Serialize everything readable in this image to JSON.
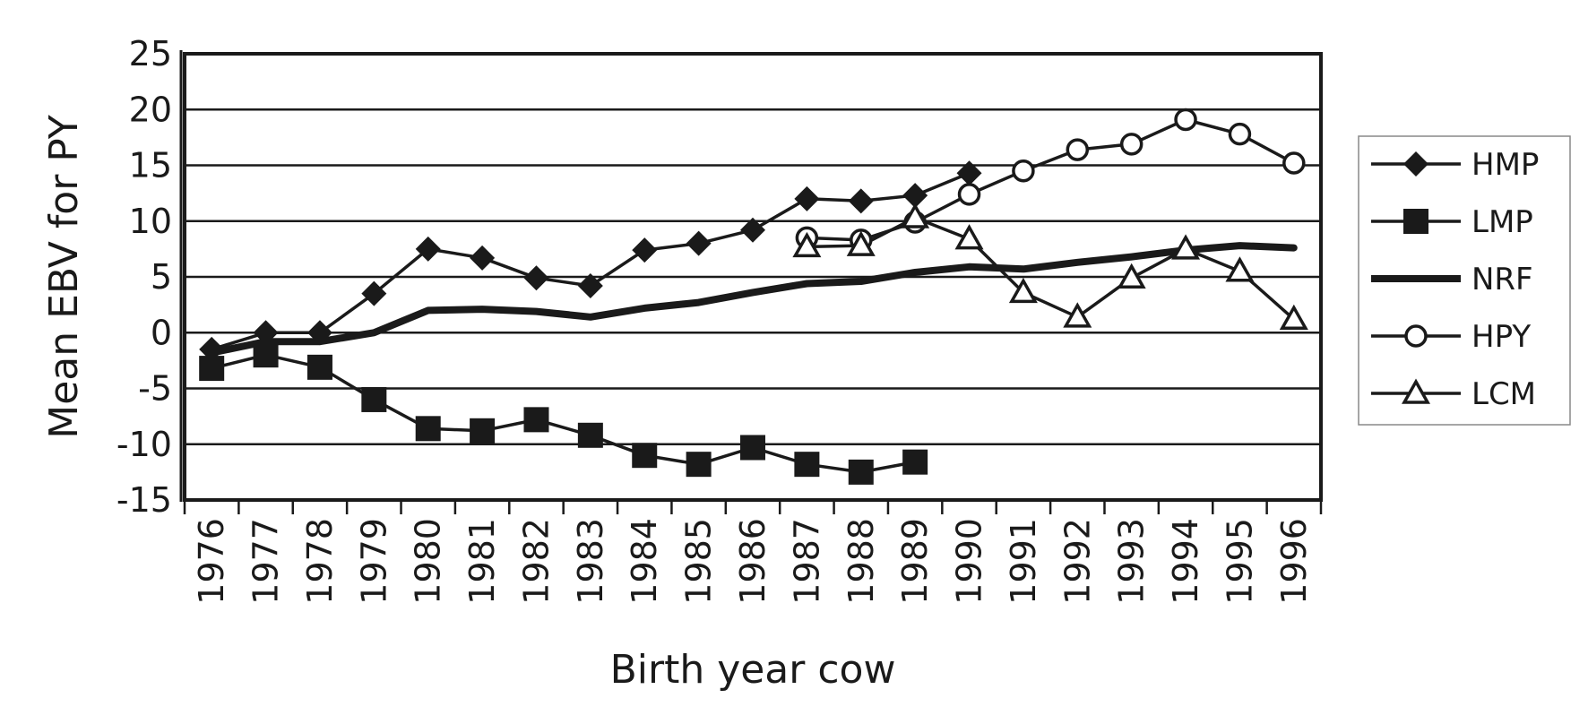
{
  "chart_data": {
    "type": "line",
    "title": "",
    "xlabel": "Birth year cow",
    "ylabel": "Mean EBV for PY",
    "ylim": [
      -15,
      25
    ],
    "yticks": [
      25,
      20,
      15,
      10,
      5,
      0,
      -5,
      -10,
      -15
    ],
    "categories": [
      "1976",
      "1977",
      "1978",
      "1979",
      "1980",
      "1981",
      "1982",
      "1983",
      "1984",
      "1985",
      "1986",
      "1987",
      "1988",
      "1989",
      "1990",
      "1991",
      "1992",
      "1993",
      "1994",
      "1995",
      "1996"
    ],
    "grid": "horizontal",
    "legend_position": "right",
    "series": [
      {
        "name": "HMP",
        "marker": "diamond",
        "line": "thin",
        "values": [
          -1.5,
          0.0,
          0.0,
          3.5,
          7.5,
          6.7,
          4.9,
          4.2,
          7.4,
          8.0,
          9.2,
          12.0,
          11.8,
          12.3,
          14.3,
          null,
          null,
          null,
          null,
          null,
          null
        ]
      },
      {
        "name": "LMP",
        "marker": "square",
        "line": "thin",
        "values": [
          -3.2,
          -2.0,
          -3.1,
          -6.0,
          -8.6,
          -8.8,
          -7.8,
          -9.2,
          -11.0,
          -11.8,
          -10.3,
          -11.8,
          -12.5,
          -11.6,
          null,
          null,
          null,
          null,
          null,
          null,
          null
        ]
      },
      {
        "name": "NRF",
        "marker": "none",
        "line": "thick",
        "values": [
          -1.8,
          -0.8,
          -0.8,
          0.0,
          2.0,
          2.1,
          1.9,
          1.4,
          2.2,
          2.7,
          3.6,
          4.4,
          4.6,
          5.4,
          5.9,
          5.7,
          6.3,
          6.8,
          7.4,
          7.8,
          7.6
        ]
      },
      {
        "name": "HPY",
        "marker": "circle-open",
        "line": "thin",
        "values": [
          null,
          null,
          null,
          null,
          null,
          null,
          null,
          null,
          null,
          null,
          null,
          8.5,
          8.3,
          9.9,
          12.4,
          14.5,
          16.4,
          16.9,
          19.1,
          17.8,
          15.2
        ]
      },
      {
        "name": "LCM",
        "marker": "triangle-open",
        "line": "thin",
        "values": [
          null,
          null,
          null,
          null,
          null,
          null,
          null,
          null,
          null,
          null,
          null,
          7.7,
          7.8,
          10.3,
          8.4,
          3.6,
          1.4,
          4.9,
          7.5,
          5.5,
          1.2
        ]
      }
    ]
  }
}
